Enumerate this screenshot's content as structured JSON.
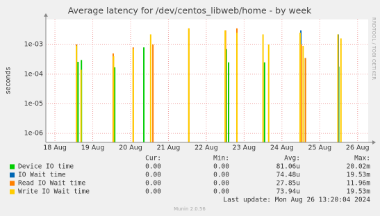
{
  "chart_data": {
    "type": "spike",
    "title": "Average latency for /dev/centos_libweb/home - by week",
    "y_label": "seconds",
    "log_y": true,
    "grid": true,
    "xlim": [
      17.76,
      26.28
    ],
    "ylim": [
      5e-07,
      0.007
    ],
    "xticks": [
      {
        "value": 18,
        "label": "18 Aug"
      },
      {
        "value": 19,
        "label": "19 Aug"
      },
      {
        "value": 20,
        "label": "20 Aug"
      },
      {
        "value": 21,
        "label": "21 Aug"
      },
      {
        "value": 22,
        "label": "22 Aug"
      },
      {
        "value": 23,
        "label": "23 Aug"
      },
      {
        "value": 24,
        "label": "24 Aug"
      },
      {
        "value": 25,
        "label": "25 Aug"
      },
      {
        "value": 26,
        "label": "26 Aug"
      }
    ],
    "yticks": [
      {
        "value": 1e-06,
        "label": "1e-06"
      },
      {
        "value": 1e-05,
        "label": "1e-05"
      },
      {
        "value": 0.0001,
        "label": "1e-04"
      },
      {
        "value": 0.001,
        "label": "1e-03"
      }
    ],
    "stat_headers": [
      "Cur:",
      "Min:",
      "Avg:",
      "Max:"
    ],
    "series": [
      {
        "name": "Device IO time",
        "color": "#00cc00",
        "x": [
          18.57,
          18.61,
          18.7,
          19.58,
          20.35,
          22.53,
          22.59,
          23.54,
          24.62,
          25.5
        ],
        "values": [
          0.001,
          0.00026,
          0.0003,
          0.00017,
          0.0008,
          0.0007,
          0.00025,
          0.00025,
          0.00035,
          0.00018
        ],
        "stats": [
          "0.00",
          "0.00",
          "81.06u",
          "20.02m"
        ]
      },
      {
        "name": "IO Wait time",
        "color": "#0066b3",
        "x": [
          24.5,
          25.49
        ],
        "values": [
          0.003,
          0.0022
        ],
        "stats": [
          "0.00",
          "0.00",
          "74.48u",
          "19.53m"
        ]
      },
      {
        "name": "Read IO Wait time",
        "color": "#ff8000",
        "x": [
          18.57,
          19.54,
          20.07,
          20.59,
          21.54,
          22.51,
          22.81,
          24.51,
          24.62
        ],
        "values": [
          0.001,
          0.0005,
          0.0008,
          0.001,
          0.0035,
          0.003,
          0.0035,
          0.001,
          0.00035
        ],
        "stats": [
          "0.00",
          "0.00",
          "27.85u",
          "11.96m"
        ]
      },
      {
        "name": "Write IO Wait time",
        "color": "#ffcc00",
        "x": [
          18.57,
          18.69,
          19.55,
          20.07,
          20.53,
          21.54,
          22.5,
          22.81,
          23.5,
          23.65,
          24.48,
          24.56,
          25.48,
          25.56
        ],
        "values": [
          0.0009,
          0.00014,
          0.0004,
          0.0007,
          0.0022,
          0.0035,
          0.003,
          0.0025,
          0.0022,
          0.001,
          0.0025,
          0.0009,
          0.0022,
          0.0016
        ],
        "stats": [
          "0.00",
          "0.00",
          "73.94u",
          "19.53m"
        ]
      }
    ],
    "last_update": "Last update: Mon Aug 26 13:20:04 2024",
    "footer": "Munin 2.0.56",
    "side_label": "RRDTOOL / TOBI OETIKER"
  }
}
